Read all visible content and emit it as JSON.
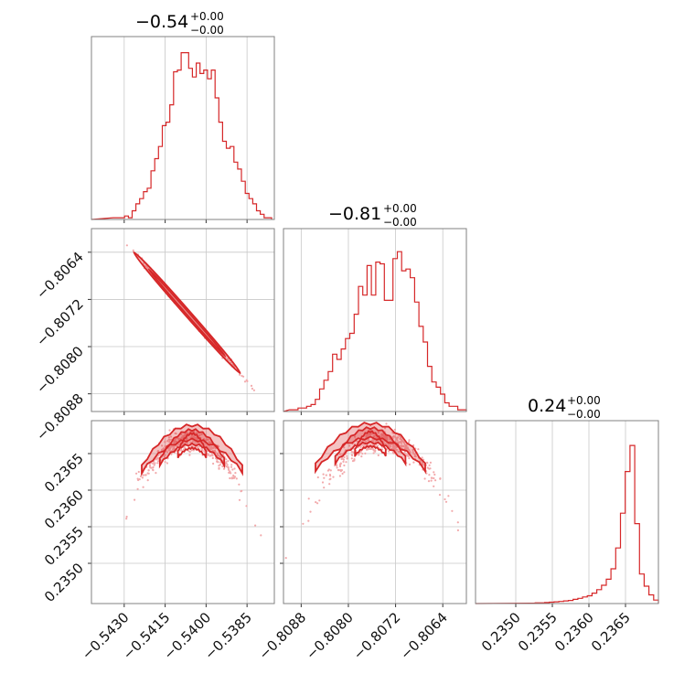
{
  "chart_data": {
    "type": "corner",
    "color": "#d62728",
    "grid": true,
    "parameters": [
      {
        "title": "−0.54",
        "plus": "+0.00",
        "minus": "−0.00",
        "range": [
          -0.5442,
          -0.5375
        ],
        "ticks": [
          -0.543,
          -0.5415,
          -0.54,
          -0.5385
        ],
        "tick_labels": [
          "−0.5430",
          "−0.5415",
          "−0.5400",
          "−0.5385"
        ],
        "histogram": [
          0.01,
          0.01,
          0.01,
          0.02,
          0.01,
          0.05,
          0.09,
          0.12,
          0.16,
          0.18,
          0.28,
          0.35,
          0.42,
          0.54,
          0.56,
          0.66,
          0.85,
          0.86,
          0.96,
          0.96,
          0.87,
          0.82,
          0.9,
          0.84,
          0.86,
          0.81,
          0.86,
          0.7,
          0.56,
          0.45,
          0.41,
          0.42,
          0.33,
          0.29,
          0.22,
          0.15,
          0.12,
          0.09,
          0.05,
          0.03,
          0.01,
          0.01
        ],
        "hist_range": [
          -0.5434,
          -0.5376
        ]
      },
      {
        "title": "−0.81",
        "plus": "+0.00",
        "minus": "−0.00",
        "range": [
          -0.8091,
          -0.806
        ],
        "ticks": [
          -0.8088,
          -0.808,
          -0.8072,
          -0.8064
        ],
        "tick_labels": [
          "−0.8088",
          "−0.8080",
          "−0.8072",
          "−0.8064"
        ],
        "histogram": [
          0.01,
          0.01,
          0.02,
          0.02,
          0.03,
          0.04,
          0.07,
          0.13,
          0.18,
          0.23,
          0.33,
          0.3,
          0.36,
          0.42,
          0.45,
          0.56,
          0.72,
          0.67,
          0.84,
          0.67,
          0.86,
          0.85,
          0.64,
          0.64,
          0.88,
          0.92,
          0.81,
          0.82,
          0.77,
          0.63,
          0.49,
          0.4,
          0.26,
          0.17,
          0.14,
          0.1,
          0.05,
          0.03,
          0.03,
          0.01,
          0.01
        ],
        "hist_range": [
          -0.809,
          -0.806
        ]
      },
      {
        "title": "0.24",
        "plus": "+0.00",
        "minus": "−0.00",
        "range": [
          0.23445,
          0.23695
        ],
        "ticks": [
          0.235,
          0.2355,
          0.236,
          0.2365
        ],
        "tick_labels": [
          "0.2350",
          "0.2355",
          "0.2360",
          "0.2365"
        ],
        "histogram": [
          0.002,
          0.004,
          0.004,
          0.006,
          0.008,
          0.01,
          0.012,
          0.015,
          0.018,
          0.024,
          0.03,
          0.038,
          0.045,
          0.06,
          0.08,
          0.105,
          0.14,
          0.2,
          0.32,
          0.52,
          0.76,
          0.91,
          0.46,
          0.17,
          0.1,
          0.05,
          0.02
        ],
        "hist_range": [
          0.2352,
          0.23695
        ]
      }
    ],
    "y_tick_labels_row2": [
      "−0.8064",
      "−0.8072",
      "−0.8080",
      "−0.8088"
    ],
    "y_ticks_row2": [
      -0.8064,
      -0.8072,
      -0.808,
      -0.8088
    ],
    "y_tick_labels_row3": [
      "0.2365",
      "0.2360",
      "0.2355",
      "0.2350"
    ],
    "y_ticks_row3": [
      0.2365,
      0.236,
      0.2355,
      0.235
    ]
  }
}
